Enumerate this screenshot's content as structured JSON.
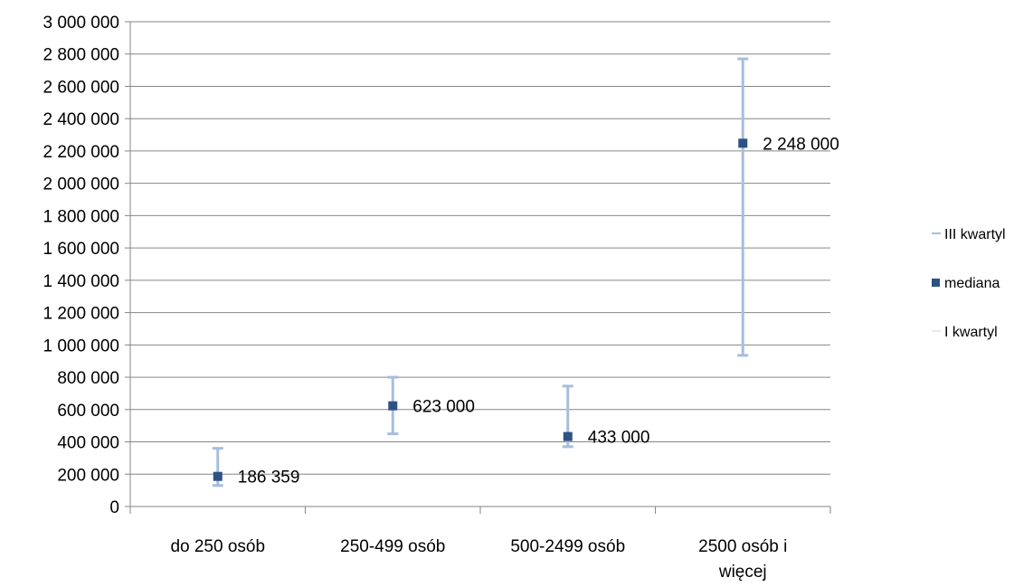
{
  "chart_data": {
    "type": "scatter",
    "title": "",
    "xlabel": "",
    "ylabel": "",
    "categories": [
      [
        "do 250 osób"
      ],
      [
        "250-499 osób"
      ],
      [
        "500-2499 osób"
      ],
      [
        "2500 osób i",
        "więcej"
      ]
    ],
    "ylim": [
      0,
      3000000
    ],
    "ytick_step": 200000,
    "y_tick_labels": [
      "0",
      "200 000",
      "400 000",
      "600 000",
      "800 000",
      "1 000 000",
      "1 200 000",
      "1 400 000",
      "1 600 000",
      "1 800 000",
      "2 000 000",
      "2 200 000",
      "2 400 000",
      "2 600 000",
      "2 800 000",
      "3 000 000"
    ],
    "grid": true,
    "legend_position": "right",
    "series": [
      {
        "name": "III kwartyl",
        "values": [
          360000,
          800000,
          745000,
          2770000
        ],
        "color": "#a6bedd"
      },
      {
        "name": "mediana",
        "values": [
          186359,
          623000,
          433000,
          2248000
        ],
        "color": "#2f5283",
        "data_labels": [
          "186 359",
          "623 000",
          "433 000",
          "2 248 000"
        ]
      },
      {
        "name": "I kwartyl",
        "values": [
          130000,
          450000,
          370000,
          935000
        ],
        "color": "#a6bedd"
      }
    ],
    "legend": [
      "III kwartyl",
      "mediana",
      "I kwartyl"
    ]
  }
}
